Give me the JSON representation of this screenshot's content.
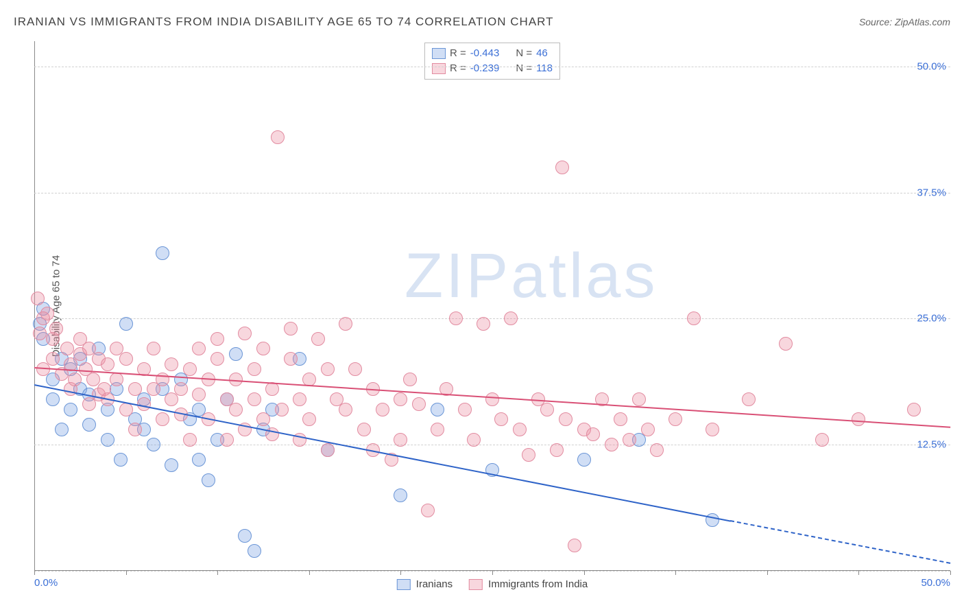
{
  "title": "IRANIAN VS IMMIGRANTS FROM INDIA DISABILITY AGE 65 TO 74 CORRELATION CHART",
  "source": "Source: ZipAtlas.com",
  "ylabel": "Disability Age 65 to 74",
  "watermark": "ZIPatlas",
  "chart": {
    "type": "scatter",
    "x_min": 0,
    "x_max": 50,
    "y_min": 0,
    "y_max": 52.5,
    "x_ticks": [
      0,
      5,
      10,
      15,
      20,
      25,
      30,
      35,
      40,
      45,
      50
    ],
    "x_tick_labels": {
      "0": "0.0%",
      "50": "50.0%"
    },
    "y_gridlines": [
      0,
      12.5,
      25,
      37.5,
      50
    ],
    "y_tick_labels": [
      "12.5%",
      "25.0%",
      "37.5%",
      "50.0%"
    ],
    "y_tick_values": [
      12.5,
      25,
      37.5,
      50
    ],
    "background_color": "#ffffff",
    "grid_color": "#d0d0d0",
    "axis_color": "#888888",
    "point_radius": 10,
    "series": [
      {
        "name": "Iranians",
        "fill": "rgba(120,160,225,0.35)",
        "stroke": "#6a95d6",
        "line_color": "#2e63c8",
        "R": "-0.443",
        "N": "46",
        "reg_start": {
          "x": 0,
          "y": 18.5
        },
        "reg_solid_end": {
          "x": 38,
          "y": 5.0
        },
        "reg_dash_end": {
          "x": 50,
          "y": 0.8
        },
        "points": [
          [
            0.3,
            24.5
          ],
          [
            0.5,
            23
          ],
          [
            0.5,
            26
          ],
          [
            1,
            19
          ],
          [
            1,
            17
          ],
          [
            1.5,
            21
          ],
          [
            1.5,
            14
          ],
          [
            2,
            20
          ],
          [
            2,
            16
          ],
          [
            2.5,
            21
          ],
          [
            2.5,
            18
          ],
          [
            3,
            17.5
          ],
          [
            3,
            14.5
          ],
          [
            3.5,
            22
          ],
          [
            4,
            13
          ],
          [
            4,
            16
          ],
          [
            4.5,
            18
          ],
          [
            4.7,
            11
          ],
          [
            5,
            24.5
          ],
          [
            5.5,
            15
          ],
          [
            6,
            14
          ],
          [
            6,
            17
          ],
          [
            6.5,
            12.5
          ],
          [
            7,
            31.5
          ],
          [
            7,
            18
          ],
          [
            7.5,
            10.5
          ],
          [
            8,
            19
          ],
          [
            8.5,
            15
          ],
          [
            9,
            11
          ],
          [
            9,
            16
          ],
          [
            9.5,
            9
          ],
          [
            10,
            13
          ],
          [
            10.5,
            17
          ],
          [
            11,
            21.5
          ],
          [
            11.5,
            3.5
          ],
          [
            12,
            2
          ],
          [
            12.5,
            14
          ],
          [
            13,
            16
          ],
          [
            14.5,
            21
          ],
          [
            16,
            12
          ],
          [
            20,
            7.5
          ],
          [
            22,
            16
          ],
          [
            25,
            10
          ],
          [
            30,
            11
          ],
          [
            33,
            13
          ],
          [
            37,
            5
          ]
        ]
      },
      {
        "name": "Immigrants from India",
        "fill": "rgba(235,140,160,0.35)",
        "stroke": "#e28ba0",
        "line_color": "#d94f75",
        "R": "-0.239",
        "N": "118",
        "reg_start": {
          "x": 0,
          "y": 20.2
        },
        "reg_solid_end": {
          "x": 50,
          "y": 14.3
        },
        "reg_dash_end": null,
        "points": [
          [
            0.2,
            27
          ],
          [
            0.3,
            23.5
          ],
          [
            0.5,
            25
          ],
          [
            0.5,
            20
          ],
          [
            0.7,
            25.5
          ],
          [
            1,
            21
          ],
          [
            1,
            23
          ],
          [
            1.2,
            24
          ],
          [
            1.5,
            19.5
          ],
          [
            1.8,
            22
          ],
          [
            2,
            20.5
          ],
          [
            2,
            18
          ],
          [
            2.2,
            19
          ],
          [
            2.5,
            21.5
          ],
          [
            2.5,
            23
          ],
          [
            2.8,
            20
          ],
          [
            3,
            22
          ],
          [
            3,
            16.5
          ],
          [
            3.2,
            19
          ],
          [
            3.5,
            17.5
          ],
          [
            3.5,
            21
          ],
          [
            3.8,
            18
          ],
          [
            4,
            20.5
          ],
          [
            4,
            17
          ],
          [
            4.5,
            19
          ],
          [
            4.5,
            22
          ],
          [
            5,
            16
          ],
          [
            5,
            21
          ],
          [
            5.5,
            18
          ],
          [
            5.5,
            14
          ],
          [
            6,
            20
          ],
          [
            6,
            16.5
          ],
          [
            6.5,
            22
          ],
          [
            6.5,
            18
          ],
          [
            7,
            19
          ],
          [
            7,
            15
          ],
          [
            7.5,
            20.5
          ],
          [
            7.5,
            17
          ],
          [
            8,
            18
          ],
          [
            8,
            15.5
          ],
          [
            8.5,
            20
          ],
          [
            8.5,
            13
          ],
          [
            9,
            17.5
          ],
          [
            9,
            22
          ],
          [
            9.5,
            19
          ],
          [
            9.5,
            15
          ],
          [
            10,
            21
          ],
          [
            10,
            23
          ],
          [
            10.5,
            17
          ],
          [
            10.5,
            13
          ],
          [
            11,
            19
          ],
          [
            11,
            16
          ],
          [
            11.5,
            23.5
          ],
          [
            11.5,
            14
          ],
          [
            12,
            20
          ],
          [
            12,
            17
          ],
          [
            12.5,
            15
          ],
          [
            12.5,
            22
          ],
          [
            13,
            18
          ],
          [
            13,
            13.5
          ],
          [
            13.3,
            43
          ],
          [
            13.5,
            16
          ],
          [
            14,
            21
          ],
          [
            14,
            24
          ],
          [
            14.5,
            17
          ],
          [
            14.5,
            13
          ],
          [
            15,
            19
          ],
          [
            15,
            15
          ],
          [
            15.5,
            23
          ],
          [
            16,
            20
          ],
          [
            16,
            12
          ],
          [
            16.5,
            17
          ],
          [
            17,
            24.5
          ],
          [
            17,
            16
          ],
          [
            17.5,
            20
          ],
          [
            18,
            14
          ],
          [
            18.5,
            18
          ],
          [
            18.5,
            12
          ],
          [
            19,
            16
          ],
          [
            19.5,
            11
          ],
          [
            20,
            17
          ],
          [
            20,
            13
          ],
          [
            20.5,
            19
          ],
          [
            21,
            16.5
          ],
          [
            21.5,
            6
          ],
          [
            22,
            14
          ],
          [
            22.5,
            18
          ],
          [
            23,
            25
          ],
          [
            23.5,
            16
          ],
          [
            24,
            13
          ],
          [
            24.5,
            24.5
          ],
          [
            25,
            17
          ],
          [
            25.5,
            15
          ],
          [
            26,
            25
          ],
          [
            26.5,
            14
          ],
          [
            27,
            11.5
          ],
          [
            27.5,
            17
          ],
          [
            28,
            16
          ],
          [
            28.5,
            12
          ],
          [
            28.8,
            40
          ],
          [
            29,
            15
          ],
          [
            29.5,
            2.5
          ],
          [
            30,
            14
          ],
          [
            30.5,
            13.5
          ],
          [
            31,
            17
          ],
          [
            31.5,
            12.5
          ],
          [
            32,
            15
          ],
          [
            32.5,
            13
          ],
          [
            33,
            17
          ],
          [
            33.5,
            14
          ],
          [
            34,
            12
          ],
          [
            35,
            15
          ],
          [
            36,
            25
          ],
          [
            37,
            14
          ],
          [
            39,
            17
          ],
          [
            41,
            22.5
          ],
          [
            43,
            13
          ],
          [
            45,
            15
          ],
          [
            48,
            16
          ]
        ]
      }
    ]
  },
  "bottom_legend": [
    "Iranians",
    "Immigrants from India"
  ]
}
